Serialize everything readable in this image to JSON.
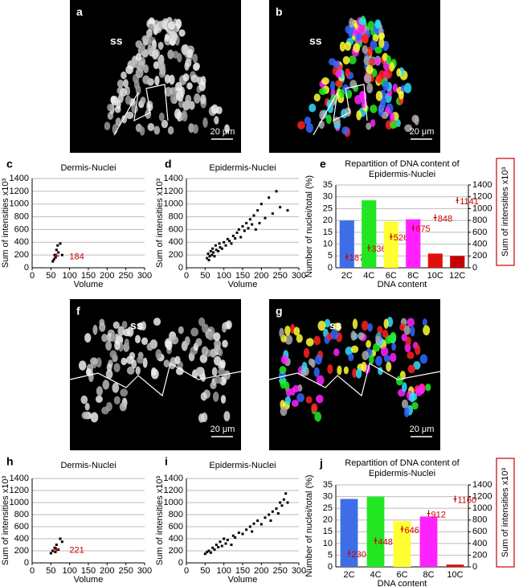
{
  "images": [
    {
      "panel": "a",
      "annotation": "ss",
      "scale_bar": "20 μm",
      "colored": false
    },
    {
      "panel": "b",
      "annotation": "ss",
      "scale_bar": "20 μm",
      "colored": true
    },
    {
      "panel": "f",
      "annotation": "ss",
      "scale_bar": "20 μm",
      "colored": false
    },
    {
      "panel": "g",
      "annotation": "ss",
      "scale_bar": "20 μm",
      "colored": true
    }
  ],
  "chart_data": [
    {
      "type": "scatter",
      "panel": "c",
      "title": "Dermis-Nuclei",
      "x_label": "Volume",
      "y_label": "Sum of intensities x10³",
      "xlim": [
        0,
        300
      ],
      "xticks": [
        0,
        50,
        100,
        150,
        200,
        250,
        300
      ],
      "ylim": [
        0,
        1400
      ],
      "yticks": [
        0,
        200,
        400,
        600,
        800,
        1000,
        1200,
        1400
      ],
      "grid": true,
      "series": [
        {
          "color": "#000000",
          "x": [
            55,
            58,
            60,
            62,
            65,
            68,
            70,
            75,
            80
          ],
          "values": [
            100,
            130,
            200,
            160,
            280,
            350,
            240,
            380,
            200
          ]
        },
        {
          "color": "#cc0000",
          "x": [
            65
          ],
          "values": [
            184
          ]
        }
      ]
    },
    {
      "type": "scatter",
      "panel": "d",
      "title": "Epidermis-Nuclei",
      "x_label": "Volume",
      "y_label": "Sum of intensities x10³",
      "xlim": [
        0,
        300
      ],
      "xticks": [
        0,
        50,
        100,
        150,
        200,
        250,
        300
      ],
      "ylim": [
        0,
        1400
      ],
      "yticks": [
        0,
        200,
        400,
        600,
        800,
        1000,
        1200,
        1400
      ],
      "grid": true,
      "series": [
        {
          "color": "#000000",
          "x": [
            55,
            58,
            60,
            62,
            65,
            68,
            70,
            72,
            75,
            78,
            80,
            85,
            88,
            90,
            95,
            100,
            105,
            110,
            115,
            120,
            125,
            130,
            135,
            140,
            145,
            150,
            155,
            160,
            165,
            170,
            175,
            180,
            185,
            190,
            195,
            200,
            210,
            220,
            230,
            240,
            250,
            270
          ],
          "values": [
            150,
            220,
            120,
            180,
            260,
            200,
            300,
            240,
            180,
            350,
            280,
            260,
            380,
            320,
            300,
            400,
            350,
            450,
            420,
            380,
            500,
            460,
            550,
            600,
            480,
            650,
            580,
            700,
            620,
            760,
            680,
            820,
            600,
            900,
            700,
            1000,
            780,
            1100,
            850,
            1200,
            950,
            900
          ]
        }
      ]
    },
    {
      "type": "bar",
      "panel": "e",
      "title_lines": [
        "Repartition of DNA content of",
        "Epidermis-Nuclei"
      ],
      "x_label": "DNA content",
      "y_label": "Number of nuclei/total (%)",
      "y2_label": "Sum of intensities x10³",
      "categories": [
        "2C",
        "4C",
        "6C",
        "8C",
        "10C",
        "12C"
      ],
      "ylim": [
        0,
        35
      ],
      "yticks": [
        0,
        5,
        10,
        15,
        20,
        25,
        30,
        35
      ],
      "y2lim": [
        0,
        1400
      ],
      "y2ticks": [
        0,
        200,
        400,
        600,
        800,
        1000,
        1200,
        1400
      ],
      "grid": true,
      "series": [
        {
          "colors": [
            "#3d6ee8",
            "#22e622",
            "#ffff33",
            "#ff22ff",
            "#e01010",
            "#c40000"
          ],
          "values": [
            20,
            28.5,
            19.5,
            20.5,
            6,
            5
          ]
        },
        {
          "axis": "y2",
          "color": "#cc0000",
          "values": [
            187,
            336,
            526,
            675,
            848,
            1141
          ]
        }
      ]
    },
    {
      "type": "scatter",
      "panel": "h",
      "title": "Dermis-Nuclei",
      "x_label": "Volume",
      "y_label": "Sum of intensities x10³",
      "xlim": [
        0,
        300
      ],
      "xticks": [
        0,
        50,
        100,
        150,
        200,
        250,
        300
      ],
      "ylim": [
        0,
        1400
      ],
      "yticks": [
        0,
        200,
        400,
        600,
        800,
        1000,
        1200,
        1400
      ],
      "grid": true,
      "series": [
        {
          "color": "#000000",
          "x": [
            50,
            55,
            60,
            62,
            65,
            70,
            75,
            80
          ],
          "values": [
            160,
            200,
            250,
            180,
            300,
            220,
            400,
            350
          ]
        },
        {
          "color": "#cc0000",
          "x": [
            65
          ],
          "values": [
            221
          ]
        }
      ]
    },
    {
      "type": "scatter",
      "panel": "i",
      "title": "Epidermis-Nuclei",
      "x_label": "Volume",
      "y_label": "Sum of intensities x10³",
      "xlim": [
        0,
        300
      ],
      "xticks": [
        0,
        50,
        100,
        150,
        200,
        250,
        300
      ],
      "ylim": [
        0,
        1400
      ],
      "yticks": [
        0,
        200,
        400,
        600,
        800,
        1000,
        1200,
        1400
      ],
      "grid": true,
      "series": [
        {
          "color": "#000000",
          "x": [
            50,
            55,
            60,
            65,
            70,
            75,
            80,
            85,
            90,
            95,
            100,
            105,
            110,
            120,
            125,
            130,
            140,
            150,
            160,
            170,
            175,
            180,
            190,
            200,
            210,
            220,
            225,
            230,
            240,
            245,
            250,
            255,
            260,
            265,
            270
          ],
          "values": [
            150,
            180,
            200,
            170,
            250,
            220,
            300,
            260,
            350,
            280,
            400,
            320,
            380,
            300,
            450,
            420,
            500,
            480,
            550,
            600,
            520,
            650,
            700,
            640,
            750,
            800,
            700,
            850,
            900,
            820,
            1000,
            950,
            1050,
            1150,
            1000
          ]
        }
      ]
    },
    {
      "type": "bar",
      "panel": "j",
      "title_lines": [
        "Repartition of DNA content of",
        "Epidermis-Nuclei"
      ],
      "x_label": "DNA content",
      "y_label": "Number of nuclei/total (%)",
      "y2_label": "Sum of intensities x10³",
      "categories": [
        "2C",
        "4C",
        "6C",
        "8C",
        "10C"
      ],
      "ylim": [
        0,
        35
      ],
      "yticks": [
        0,
        5,
        10,
        15,
        20,
        25,
        30,
        35
      ],
      "y2lim": [
        0,
        1400
      ],
      "y2ticks": [
        0,
        200,
        400,
        600,
        800,
        1000,
        1200,
        1400
      ],
      "grid": true,
      "series": [
        {
          "colors": [
            "#3d6ee8",
            "#22e622",
            "#ffff33",
            "#ff22ff",
            "#e01010"
          ],
          "values": [
            29,
            30,
            19.5,
            21.5,
            1
          ]
        },
        {
          "axis": "y2",
          "color": "#cc0000",
          "values": [
            230,
            448,
            646,
            912,
            1160
          ]
        }
      ]
    }
  ]
}
